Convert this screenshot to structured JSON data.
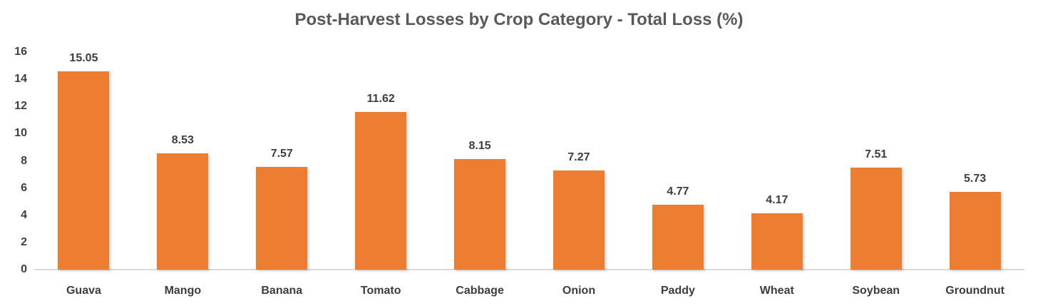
{
  "chart_data": {
    "type": "bar",
    "title": "Post-Harvest Losses by Crop Category - Total Loss (%)",
    "categories": [
      "Guava",
      "Mango",
      "Banana",
      "Tomato",
      "Cabbage",
      "Onion",
      "Paddy",
      "Wheat",
      "Soybean",
      "Groundnut"
    ],
    "values": [
      15.05,
      8.53,
      7.57,
      11.62,
      8.15,
      7.27,
      4.77,
      4.17,
      7.51,
      5.73
    ],
    "value_label_decimals": 2,
    "xlabel": "",
    "ylabel": "",
    "ylim": [
      0,
      16
    ],
    "yticks": [
      0,
      2,
      4,
      6,
      8,
      10,
      12,
      14,
      16
    ],
    "grid": false,
    "legend_position": "none",
    "data_labels": true
  },
  "colors": {
    "bar_fill": "#ED7D31",
    "title_text": "#595959",
    "axis_text": "#3F3F3F",
    "axis_line": "#D9D9D9",
    "background": "#FFFFFF"
  }
}
